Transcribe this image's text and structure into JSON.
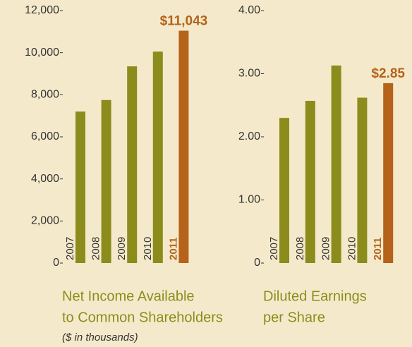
{
  "chart_data": [
    {
      "type": "bar",
      "title": [
        "Net Income Available",
        "to Common Shareholders"
      ],
      "subtitle": "($ in thousands)",
      "categories": [
        "2007",
        "2008",
        "2009",
        "2010",
        "2011"
      ],
      "values": [
        7200,
        7750,
        9350,
        10050,
        11043
      ],
      "value_labels": [
        null,
        null,
        null,
        null,
        "$11,043"
      ],
      "color": "#8c8c1c",
      "colors": [
        "#8c8c1c",
        "#8c8c1c",
        "#8c8c1c",
        "#8c8c1c",
        "#b5621b"
      ],
      "ylim": [
        0,
        12000
      ],
      "yticks": [
        0,
        {
          "value": 2000,
          "label": "2,000"
        },
        {
          "value": 4000,
          "label": "4,000"
        },
        {
          "value": 6000,
          "label": "6,000"
        },
        {
          "value": 8000,
          "label": "8,000"
        },
        {
          "value": 10000,
          "label": "10,000"
        },
        {
          "value": 12000,
          "label": "12,000"
        }
      ]
    },
    {
      "type": "bar",
      "title": [
        "Diluted Earnings",
        "per Share"
      ],
      "categories": [
        "2007",
        "2008",
        "2009",
        "2010",
        "2011"
      ],
      "values": [
        2.3,
        2.57,
        3.13,
        2.62,
        2.85
      ],
      "value_labels": [
        null,
        null,
        null,
        null,
        "$2.85"
      ],
      "color": "#8c8c1c",
      "colors": [
        "#8c8c1c",
        "#8c8c1c",
        "#8c8c1c",
        "#8c8c1c",
        "#b5621b"
      ],
      "ylim": [
        0,
        4
      ],
      "yticks": [
        0,
        {
          "value": 1,
          "label": "1.00"
        },
        {
          "value": 2,
          "label": "2.00"
        },
        {
          "value": 3,
          "label": "3.00"
        },
        {
          "value": 4,
          "label": "4.00"
        }
      ]
    }
  ]
}
